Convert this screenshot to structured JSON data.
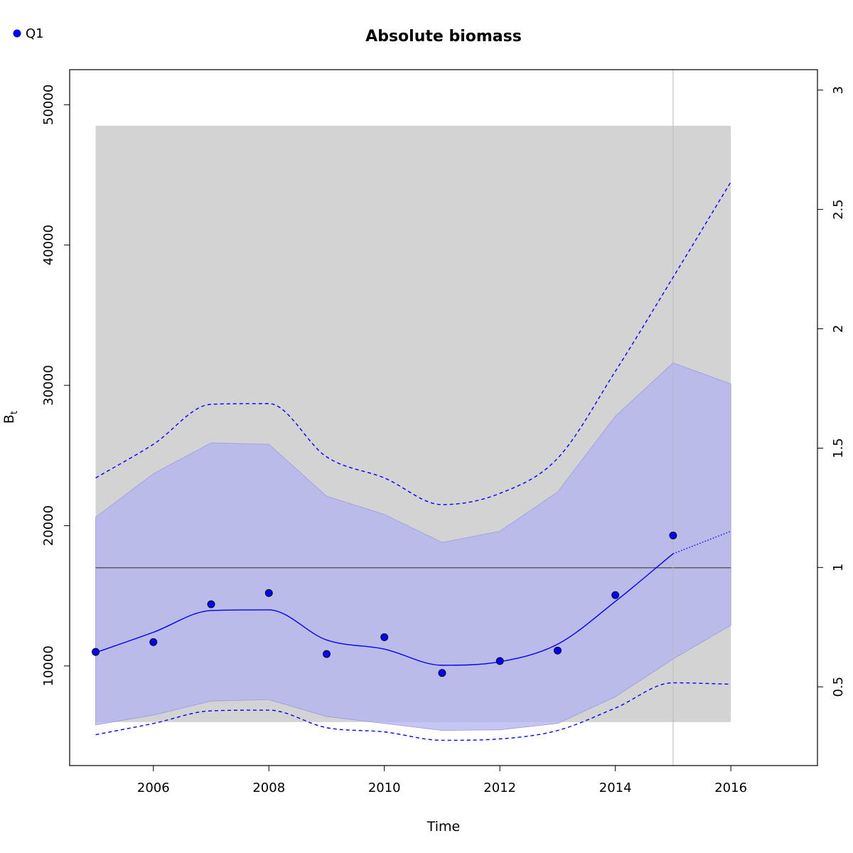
{
  "chart_data": {
    "type": "line",
    "title": "Absolute biomass",
    "xlabel": "Time",
    "ylabel_base": "B",
    "ylabel_subscript": "t",
    "xlim": [
      2004.55,
      2017.5
    ],
    "ylim": [
      2900,
      52500
    ],
    "y2lim": [
      0.1701,
      3.0856
    ],
    "x_ticks": [
      2006,
      2008,
      2010,
      2012,
      2014,
      2016
    ],
    "y_ticks": [
      10000,
      20000,
      30000,
      40000,
      50000
    ],
    "y2_ticks": [
      0.5,
      1,
      1.5,
      2,
      2.5,
      3
    ],
    "legend": {
      "position": "top-left",
      "entries": [
        {
          "label": "Q1",
          "color": "#0000ff"
        }
      ]
    },
    "colors": {
      "estimate": "#0000ff",
      "ci_fill": "#b3b3f2",
      "grey_band": "#d3d3d3",
      "reference_line": "#555555",
      "vertical_line": "#bbbbbb"
    },
    "grey_band": {
      "x": [
        2005,
        2016
      ],
      "y": [
        6000,
        48500
      ]
    },
    "reference_line_y": 17000,
    "vertical_line_x": 2015,
    "ci_band": {
      "x": [
        2005,
        2006,
        2007,
        2008,
        2009,
        2010,
        2011,
        2012,
        2013,
        2014,
        2015,
        2016
      ],
      "upper": [
        20600,
        23700,
        25900,
        25800,
        22100,
        20800,
        18800,
        19600,
        22400,
        27800,
        31600,
        30100
      ],
      "lower": [
        5800,
        6500,
        7500,
        7600,
        6400,
        5900,
        5400,
        5450,
        5900,
        7800,
        10500,
        12900
      ]
    },
    "series": [
      {
        "name": "Q1",
        "kind": "observations",
        "x": [
          2005,
          2006,
          2007,
          2008,
          2009,
          2010,
          2011,
          2012,
          2013,
          2014,
          2015
        ],
        "y": [
          11000,
          11700,
          14400,
          15200,
          10850,
          12050,
          9500,
          10350,
          11100,
          15050,
          19300
        ]
      },
      {
        "kind": "estimate",
        "x": [
          2005,
          2006,
          2007,
          2008,
          2009,
          2010,
          2011,
          2012,
          2013,
          2014,
          2015
        ],
        "y": [
          10950,
          12400,
          13950,
          14000,
          11850,
          11200,
          10050,
          10300,
          11550,
          14600,
          18000
        ]
      },
      {
        "kind": "estimate_forecast",
        "x": [
          2015,
          2016
        ],
        "y": [
          18000,
          19600
        ]
      },
      {
        "kind": "upper_bound",
        "x": [
          2005,
          2006,
          2007,
          2008,
          2009,
          2010,
          2011,
          2012,
          2013,
          2014,
          2015,
          2016
        ],
        "y": [
          23400,
          25800,
          28650,
          28700,
          24900,
          23400,
          21500,
          22300,
          24800,
          31000,
          37700,
          44500
        ]
      },
      {
        "kind": "lower_bound",
        "x": [
          2005,
          2006,
          2007,
          2008,
          2009,
          2010,
          2011,
          2012,
          2013,
          2014,
          2015,
          2016
        ],
        "y": [
          5100,
          5900,
          6800,
          6850,
          5600,
          5300,
          4700,
          4800,
          5400,
          7000,
          8800,
          8700
        ]
      }
    ]
  }
}
